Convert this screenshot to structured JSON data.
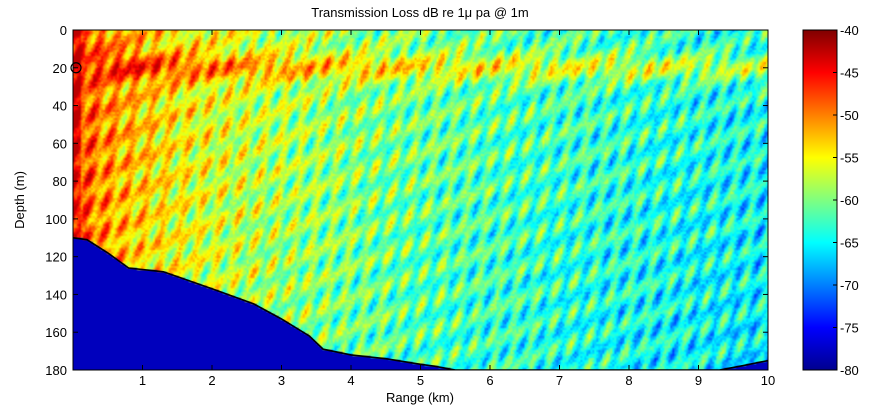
{
  "chart_data": {
    "type": "heatmap",
    "title": "Transmission Loss dB re 1μ pa @ 1m",
    "xlabel": "Range (km)",
    "ylabel": "Depth (m)",
    "xlim": [
      0,
      10
    ],
    "ylim": [
      180,
      0
    ],
    "y_axis_direction": "down",
    "x_ticks": [
      "1",
      "2",
      "3",
      "4",
      "5",
      "6",
      "7",
      "8",
      "9",
      "10"
    ],
    "y_ticks": [
      "0",
      "20",
      "40",
      "60",
      "80",
      "100",
      "120",
      "140",
      "160",
      "180"
    ],
    "colorbar": {
      "colormap": "jet",
      "range": [
        -80,
        -40
      ],
      "ticks": [
        "-40",
        "-45",
        "-50",
        "-55",
        "-60",
        "-65",
        "-70",
        "-75",
        "-80"
      ]
    },
    "source": {
      "range_km": 0,
      "depth_m": 20
    },
    "seafloor_profile": {
      "range_km": [
        0,
        0.2,
        0.5,
        0.8,
        1.3,
        2.0,
        2.6,
        3.0,
        3.4,
        3.6,
        4.0,
        4.5,
        5.0,
        5.2,
        5.5,
        6.0,
        9.3,
        9.6,
        10.0
      ],
      "depth_m": [
        110,
        111,
        118,
        126,
        128,
        137,
        145,
        153,
        162,
        169,
        172,
        174,
        177,
        178,
        180,
        180,
        180,
        178,
        175
      ]
    },
    "field_description": "approx TL (dB): near source about -42 to -48 in the upper ~110 m near range 0, decaying to about -55 at 3 km and -65 to -75 beyond 5 km; a persistent -55 to -60 band near 20 m depth across all ranges; below the seafloor uniform -80",
    "grid": false
  }
}
